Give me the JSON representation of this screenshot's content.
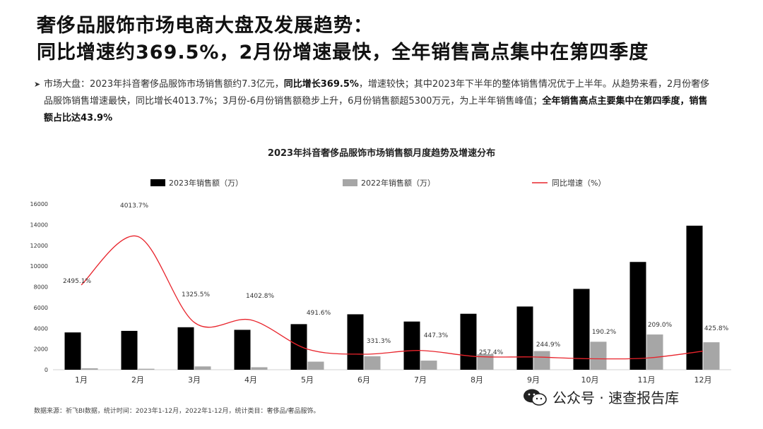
{
  "title": {
    "line1": "奢侈品服饰市场电商大盘及发展趋势：",
    "line2": "同比增速约369.5%，2月份增速最快，全年销售高点集中在第四季度"
  },
  "summary": {
    "bullet_icon": "arrow-right-icon",
    "seg1": "市场大盘：2023年抖音奢侈品服饰市场销售额约7.3亿元，",
    "seg2": "同比增长369.5%",
    "seg3": "，增速较快；其中2023年下半年的整体销售情况优于上半年。从趋势来看，2月份奢侈",
    "seg4": "品服饰销售增速最快，同比增长4013.7%；3月份-6月份销售额稳步上升，6月份销售额超5300万元，为上半年销售峰值；",
    "seg5": "全年销售高点主要集中在第四季度，销售",
    "seg6": "额占比达43.9%"
  },
  "chart_data": {
    "type": "bar",
    "title": "2023年抖音奢侈品服饰市场销售额月度趋势及增速分布",
    "categories": [
      "1月",
      "2月",
      "3月",
      "4月",
      "5月",
      "6月",
      "7月",
      "8月",
      "9月",
      "10月",
      "11月",
      "12月"
    ],
    "series": [
      {
        "name": "2023年销售额（万）",
        "color": "#000000",
        "values": [
          3600,
          3750,
          4100,
          3850,
          4400,
          5350,
          4650,
          5400,
          6100,
          7800,
          10400,
          13900
        ]
      },
      {
        "name": "2022年销售额（万）",
        "color": "#a6a6a6",
        "values": [
          140,
          95,
          320,
          240,
          780,
          1300,
          880,
          1500,
          1800,
          2700,
          3400,
          2650
        ]
      },
      {
        "name": "同比增速（%）",
        "color": "#e8232b",
        "type": "line",
        "values": [
          2495.1,
          4013.7,
          1325.5,
          1402.8,
          491.6,
          331.3,
          447.3,
          257.4,
          244.9,
          190.2,
          209.0,
          425.8
        ]
      }
    ],
    "growth_labels": [
      "2495.1%",
      "4013.7%",
      "1325.5%",
      "1402.8%",
      "491.6%",
      "331.3%",
      "447.3%",
      "257.4%",
      "244.9%",
      "190.2%",
      "209.0%",
      "425.8%"
    ],
    "y_ticks": [
      "0",
      "2000",
      "4000",
      "6000",
      "8000",
      "10000",
      "12000",
      "14000",
      "16000"
    ],
    "ylim": [
      0,
      16000
    ],
    "legend_position": "top",
    "grid": false
  },
  "source": "数据来源：祈飞BI数据，统计时间：2023年1-12月，2022年1-12月，统计类目：奢侈品/奢品服饰。",
  "watermark": {
    "icon": "wechat-icon",
    "text": "公众号 · 速查报告库"
  }
}
